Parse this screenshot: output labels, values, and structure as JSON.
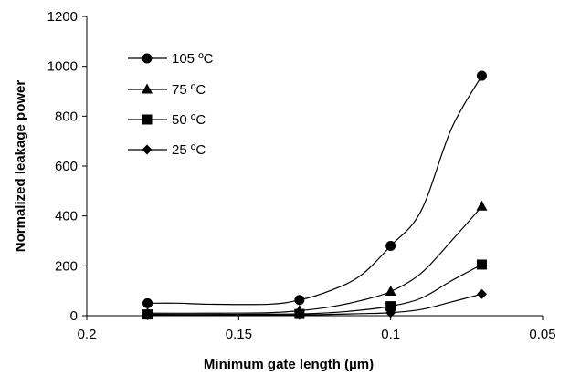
{
  "chart_data": {
    "type": "line",
    "title": "",
    "xlabel": "Minimum gate length (µm)",
    "ylabel": "Normalized leakage power",
    "xlim": [
      0.2,
      0.05
    ],
    "x_reversed": true,
    "ylim": [
      0,
      1200
    ],
    "x_ticks": [
      "0.2",
      "0.15",
      "0.1",
      "0.05"
    ],
    "y_ticks": [
      "0",
      "200",
      "400",
      "600",
      "800",
      "1000",
      "1200"
    ],
    "grid": false,
    "legend_position": "top-left",
    "series": [
      {
        "name": "105 ºC",
        "marker": "circle",
        "markers": [
          [
            0.18,
            50
          ],
          [
            0.13,
            63
          ],
          [
            0.1,
            280
          ],
          [
            0.07,
            962
          ]
        ],
        "curve": [
          [
            0.18,
            50
          ],
          [
            0.17,
            50
          ],
          [
            0.16,
            46
          ],
          [
            0.14,
            46
          ],
          [
            0.13,
            63
          ],
          [
            0.12,
            100
          ],
          [
            0.11,
            160
          ],
          [
            0.1,
            280
          ],
          [
            0.09,
            420
          ],
          [
            0.08,
            750
          ],
          [
            0.07,
            962
          ]
        ]
      },
      {
        "name": "75 ºC",
        "marker": "triangle",
        "markers": [
          [
            0.18,
            10
          ],
          [
            0.13,
            20
          ],
          [
            0.1,
            97
          ],
          [
            0.07,
            438
          ]
        ],
        "curve": [
          [
            0.18,
            10
          ],
          [
            0.16,
            10
          ],
          [
            0.14,
            12
          ],
          [
            0.13,
            20
          ],
          [
            0.12,
            35
          ],
          [
            0.11,
            60
          ],
          [
            0.1,
            97
          ],
          [
            0.09,
            170
          ],
          [
            0.08,
            300
          ],
          [
            0.07,
            438
          ]
        ]
      },
      {
        "name": "50 ºC",
        "marker": "square",
        "markers": [
          [
            0.18,
            5
          ],
          [
            0.13,
            7
          ],
          [
            0.1,
            38
          ],
          [
            0.07,
            205
          ]
        ],
        "curve": [
          [
            0.18,
            5
          ],
          [
            0.15,
            5
          ],
          [
            0.13,
            7
          ],
          [
            0.12,
            12
          ],
          [
            0.11,
            22
          ],
          [
            0.1,
            38
          ],
          [
            0.09,
            70
          ],
          [
            0.08,
            140
          ],
          [
            0.07,
            205
          ]
        ]
      },
      {
        "name": "25 ºC",
        "marker": "diamond",
        "markers": [
          [
            0.18,
            2
          ],
          [
            0.13,
            3
          ],
          [
            0.1,
            12
          ],
          [
            0.07,
            87
          ]
        ],
        "curve": [
          [
            0.18,
            2
          ],
          [
            0.15,
            2
          ],
          [
            0.13,
            3
          ],
          [
            0.12,
            5
          ],
          [
            0.11,
            8
          ],
          [
            0.1,
            12
          ],
          [
            0.09,
            25
          ],
          [
            0.08,
            55
          ],
          [
            0.07,
            87
          ]
        ]
      }
    ],
    "colors": {
      "line": "#000000",
      "marker": "#000000",
      "background": "#ffffff"
    }
  }
}
